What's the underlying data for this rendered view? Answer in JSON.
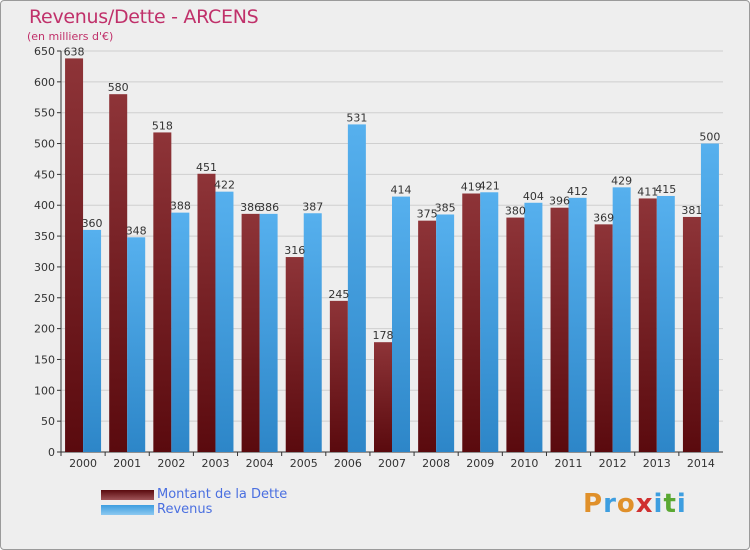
{
  "title": "Revenus/Dette - ARCENS",
  "subtitle": "(en milliers d'€)",
  "chart_data": {
    "type": "bar",
    "title": "Revenus/Dette - ARCENS",
    "ylabel": "(en milliers d'€)",
    "xlabel": "",
    "ylim": [
      0,
      650
    ],
    "yticks": [
      0,
      50,
      100,
      150,
      200,
      250,
      300,
      350,
      400,
      450,
      500,
      550,
      600,
      650
    ],
    "grid": true,
    "categories": [
      "2000",
      "2001",
      "2002",
      "2003",
      "2004",
      "2005",
      "2006",
      "2007",
      "2008",
      "2009",
      "2010",
      "2011",
      "2012",
      "2013",
      "2014"
    ],
    "series": [
      {
        "name": "Montant de la Dette",
        "color": "#7a1f24",
        "values": [
          638,
          580,
          518,
          451,
          386,
          316,
          245,
          178,
          375,
          419,
          380,
          396,
          369,
          411,
          381
        ]
      },
      {
        "name": "Revenus",
        "color": "#3d9ee0",
        "values": [
          360,
          348,
          388,
          422,
          386,
          387,
          531,
          414,
          385,
          421,
          404,
          412,
          429,
          415,
          500
        ]
      }
    ]
  },
  "legend": [
    {
      "label": "Montant de la Dette",
      "color": "#7a1f24"
    },
    {
      "label": "Revenus",
      "color": "#3d9ee0"
    }
  ],
  "logo": {
    "text": "Proxiti"
  }
}
